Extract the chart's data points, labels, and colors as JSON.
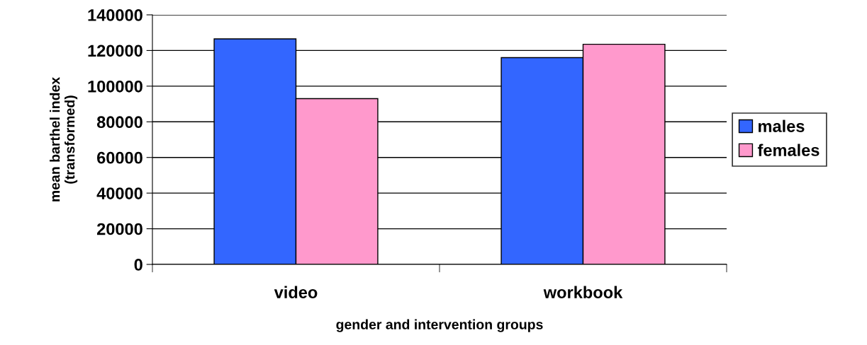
{
  "chart_data": {
    "type": "bar",
    "xlabel": "gender and intervention groups",
    "ylabel": "mean barthel index\n(transformed)",
    "categories": [
      "video",
      "workbook"
    ],
    "series": [
      {
        "name": "males",
        "color": "#3366ff",
        "values": [
          126500,
          116000
        ]
      },
      {
        "name": "females",
        "color": "#ff99cc",
        "values": [
          93000,
          123500
        ]
      }
    ],
    "ylim": [
      0,
      140000
    ],
    "yticks": [
      0,
      20000,
      40000,
      60000,
      80000,
      100000,
      120000,
      140000
    ],
    "grid": "y",
    "legend": "right"
  }
}
